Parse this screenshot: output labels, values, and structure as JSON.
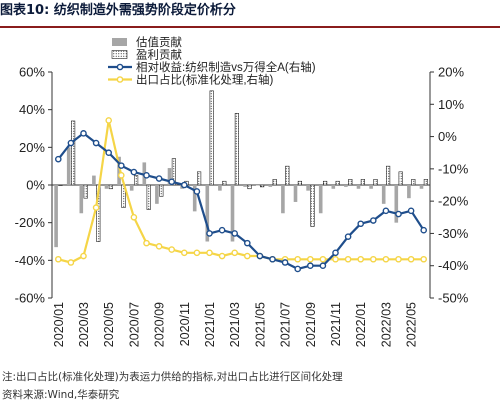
{
  "title": "图表10:  纺织制造外需强势阶段定价析分",
  "footer": {
    "note": "注:出口占比(标准化处理)为表运力供给的指标,对出口占比进行区间化处理",
    "source": "资料来源:Wind,华泰研究"
  },
  "colors": {
    "title_rule": "#8a1c1c",
    "title_text": "#0c1b3a",
    "valuation_bar": "#a6a6a6",
    "earnings_bar": "#ffffff",
    "relative_line": "#1f4e8c",
    "export_line": "#f5d547"
  },
  "chart_data": {
    "type": "bar+line",
    "x": [
      "2020/01",
      "2020/02",
      "2020/03",
      "2020/04",
      "2020/05",
      "2020/06",
      "2020/07",
      "2020/08",
      "2020/09",
      "2020/10",
      "2020/11",
      "2020/12",
      "2021/01",
      "2021/02",
      "2021/03",
      "2021/04",
      "2021/05",
      "2021/06",
      "2021/07",
      "2021/08",
      "2021/09",
      "2021/10",
      "2021/11",
      "2021/12",
      "2022/01",
      "2022/02",
      "2022/03",
      "2022/04",
      "2022/05",
      "2022/06"
    ],
    "x_tick_labels": [
      "2020/01",
      "2020/03",
      "2020/05",
      "2020/07",
      "2020/09",
      "2020/11",
      "2021/01",
      "2021/03",
      "2021/05",
      "2021/07",
      "2021/09",
      "2021/11",
      "2022/01",
      "2022/03",
      "2022/05"
    ],
    "left_axis": {
      "ylim": [
        -60,
        60
      ],
      "ticks": [
        "60%",
        "40%",
        "20%",
        "0%",
        "-20%",
        "-40%",
        "-60%"
      ],
      "tick_values": [
        60,
        40,
        20,
        0,
        -20,
        -40,
        -60
      ]
    },
    "right_axis": {
      "ylim": [
        -50,
        20
      ],
      "ticks": [
        "20%",
        "10%",
        "0%",
        "-10%",
        "-20%",
        "-30%",
        "-40%",
        "-50%"
      ],
      "tick_values": [
        20,
        10,
        0,
        -10,
        -20,
        -30,
        -40,
        -50
      ]
    },
    "legend_placement": "top-center",
    "series": [
      {
        "name": "估值贡献",
        "type": "bar",
        "axis": "left",
        "values": [
          -33,
          20,
          -15,
          5,
          -2,
          15,
          -3,
          12,
          -10,
          9,
          -2,
          -14,
          -30,
          -3,
          -30,
          -1,
          0,
          -1,
          -15,
          -9,
          -3,
          -15,
          -2,
          -1,
          -2,
          -2,
          -10,
          -20,
          -7,
          -2
        ]
      },
      {
        "name": "盈利贡献",
        "type": "bar",
        "axis": "left",
        "values": [
          0,
          34,
          -7,
          -30,
          -2,
          -12,
          5,
          -13,
          -6,
          14,
          2,
          7,
          50,
          2,
          38,
          -2,
          -1,
          3,
          10,
          2,
          -22,
          2,
          2,
          3,
          3,
          3,
          10,
          7,
          3,
          3
        ]
      },
      {
        "name": "相对收益:纺织制造vs万得全A(右轴)",
        "type": "line",
        "axis": "right",
        "values": [
          -7,
          -2,
          1,
          -2,
          -5,
          -9,
          -11,
          -12,
          -13,
          -14,
          -15,
          -17,
          -30,
          -29,
          -30,
          -33,
          -37,
          -38,
          -39,
          -41,
          -40,
          -40,
          -36,
          -31,
          -27,
          -26,
          -23,
          -24,
          -23,
          -29
        ]
      },
      {
        "name": "出口占比(标准化处理,右轴)",
        "type": "line",
        "axis": "right",
        "values": [
          -38,
          -39,
          -37,
          -22,
          5,
          -12,
          -25,
          -33,
          -34,
          -35,
          -36,
          -36,
          -36,
          -37,
          -36,
          -37,
          -37,
          -38,
          -38,
          -38,
          -38,
          -38,
          -38,
          -38,
          -38,
          -38,
          -38,
          -38,
          -38,
          -38
        ]
      }
    ]
  }
}
